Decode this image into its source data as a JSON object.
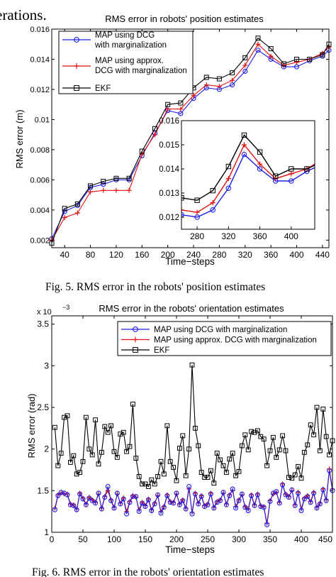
{
  "page": {
    "top_fragment": "erations.",
    "caption1": "Fig. 5.   RMS error in the robots' position estimates",
    "caption2": "Fig. 6.   RMS error in the robots' orientation estimates"
  },
  "colors": {
    "map_dcg": "#1f1fe6",
    "map_approx": "#e01010",
    "ekf": "#000000"
  },
  "chart_data": [
    {
      "type": "line",
      "title": "RMS error in robots' position estimates",
      "xlabel": "Time−steps",
      "ylabel": "RMS error (m)",
      "xlim": [
        20,
        450
      ],
      "ylim": [
        0.0015,
        0.016
      ],
      "xticks": [
        40,
        80,
        120,
        160,
        200,
        240,
        280,
        320,
        360,
        400,
        440
      ],
      "yticks": [
        0.002,
        0.004,
        0.006,
        0.008,
        0.01,
        0.012,
        0.014,
        0.016
      ],
      "ytick_labels": [
        "0.002",
        "0.004",
        "0.006",
        "0.008",
        "0.01",
        "0.012",
        "0.014",
        "0.016"
      ],
      "legend_position": "top-left",
      "x": [
        20,
        40,
        60,
        80,
        100,
        120,
        140,
        160,
        180,
        200,
        220,
        240,
        260,
        280,
        300,
        320,
        340,
        360,
        380,
        400,
        420,
        440,
        450
      ],
      "series": [
        {
          "name": "MAP using DCG\nwith marginalization",
          "marker": "circle",
          "color": "#1f1fe6",
          "values": [
            0.0021,
            0.0039,
            0.0043,
            0.0055,
            0.0057,
            0.006,
            0.006,
            0.0076,
            0.0091,
            0.0106,
            0.0104,
            0.0114,
            0.0121,
            0.012,
            0.0123,
            0.0132,
            0.0146,
            0.014,
            0.0135,
            0.0135,
            0.0139,
            0.0142,
            0.0146
          ]
        },
        {
          "name": "MAP using approx.\nDCG with marginalization",
          "marker": "plus",
          "color": "#e01010",
          "values": [
            0.002,
            0.0035,
            0.0038,
            0.0052,
            0.0053,
            0.0053,
            0.0053,
            0.0077,
            0.009,
            0.0107,
            0.0107,
            0.0116,
            0.0123,
            0.0122,
            0.0126,
            0.0136,
            0.015,
            0.0142,
            0.0136,
            0.0138,
            0.014,
            0.0144,
            0.0148
          ]
        },
        {
          "name": "EKF",
          "marker": "square",
          "color": "#000000",
          "values": [
            0.0018,
            0.0041,
            0.0044,
            0.0056,
            0.0059,
            0.0061,
            0.0061,
            0.0079,
            0.0094,
            0.011,
            0.0111,
            0.0121,
            0.0128,
            0.0127,
            0.0131,
            0.0141,
            0.0154,
            0.0147,
            0.0137,
            0.014,
            0.014,
            0.0143,
            0.015
          ]
        }
      ],
      "inset": {
        "xlim": [
          260,
          430
        ],
        "ylim": [
          0.0115,
          0.016
        ],
        "xticks": [
          280,
          320,
          360,
          400
        ],
        "yticks": [
          0.012,
          0.013,
          0.014,
          0.015,
          0.016
        ],
        "ytick_labels": [
          "0.012",
          "0.013",
          "0.014",
          "0.015",
          "0.016"
        ]
      }
    },
    {
      "type": "line",
      "title": "RMS error in the robots' orientation estimates",
      "xlabel": "Time−steps",
      "ylabel": "RMS error (rad)",
      "y_multiplier": "x 10",
      "y_multiplier_exp": "−3",
      "xlim": [
        0,
        450
      ],
      "ylim": [
        1,
        3.6
      ],
      "xticks": [
        0,
        50,
        100,
        150,
        200,
        250,
        300,
        350,
        400
      ],
      "xtick_labels": [
        "0",
        "50",
        "100",
        "150",
        "200",
        "250",
        "300",
        "350",
        "400"
      ],
      "xtick_end_label": "450",
      "yticks": [
        1,
        1.5,
        2,
        2.5,
        3,
        3.5
      ],
      "ytick_labels": [
        "1",
        "1.5",
        "2",
        "2.5",
        "3",
        "3.5"
      ],
      "legend_position": "top-right",
      "x_start": 5,
      "x_step": 5,
      "series": [
        {
          "name": "MAP using DCG with marginalization",
          "marker": "circle",
          "color": "#1f1fe6",
          "values": [
            1.27,
            1.44,
            1.48,
            1.47,
            1.45,
            1.33,
            1.32,
            1.27,
            1.46,
            1.4,
            1.33,
            1.41,
            1.38,
            1.35,
            1.47,
            1.28,
            1.42,
            1.55,
            1.38,
            1.29,
            1.47,
            1.34,
            1.4,
            1.22,
            1.36,
            1.43,
            1.43,
            1.25,
            1.35,
            1.31,
            1.39,
            1.26,
            1.34,
            1.45,
            1.23,
            1.3,
            1.44,
            1.36,
            1.35,
            1.47,
            1.33,
            1.38,
            1.28,
            1.55,
            1.22,
            1.46,
            1.34,
            1.43,
            1.31,
            1.33,
            1.46,
            1.29,
            1.36,
            1.38,
            1.48,
            1.33,
            1.44,
            1.52,
            1.29,
            1.38,
            1.46,
            1.3,
            1.26,
            1.44,
            1.32,
            1.45,
            1.31,
            1.3,
            1.09,
            1.37,
            1.47,
            1.49,
            1.35,
            1.57,
            1.45,
            1.42,
            1.51,
            1.32,
            1.47,
            1.26,
            1.4,
            1.43,
            1.36,
            1.47,
            1.29,
            1.34,
            1.51,
            1.38,
            1.74,
            1.5
          ]
        },
        {
          "name": "MAP using approx. DCG with marginalization",
          "marker": "plus",
          "color": "#e01010",
          "values": [
            1.29,
            1.45,
            1.47,
            1.46,
            1.46,
            1.34,
            1.33,
            1.28,
            1.47,
            1.41,
            1.34,
            1.42,
            1.39,
            1.36,
            1.46,
            1.29,
            1.43,
            1.5,
            1.39,
            1.3,
            1.46,
            1.35,
            1.41,
            1.25,
            1.37,
            1.44,
            1.42,
            1.27,
            1.36,
            1.32,
            1.4,
            1.27,
            1.35,
            1.44,
            1.25,
            1.31,
            1.45,
            1.37,
            1.36,
            1.46,
            1.34,
            1.39,
            1.29,
            1.52,
            1.24,
            1.47,
            1.35,
            1.44,
            1.32,
            1.34,
            1.47,
            1.3,
            1.37,
            1.39,
            1.47,
            1.34,
            1.45,
            1.5,
            1.31,
            1.39,
            1.45,
            1.31,
            1.28,
            1.45,
            1.33,
            1.46,
            1.32,
            1.31,
            1.11,
            1.38,
            1.46,
            1.48,
            1.36,
            1.58,
            1.46,
            1.43,
            1.5,
            1.33,
            1.48,
            1.28,
            1.41,
            1.44,
            1.37,
            1.48,
            1.3,
            1.35,
            1.52,
            1.39,
            1.76,
            1.52
          ]
        },
        {
          "name": "EKF",
          "marker": "square",
          "color": "#000000",
          "values": [
            2.26,
            1.8,
            1.95,
            2.38,
            2.4,
            1.84,
            1.92,
            1.7,
            1.72,
            1.85,
            2.38,
            2.0,
            1.93,
            2.35,
            1.82,
            1.96,
            2.27,
            2.2,
            2.28,
            1.97,
            1.9,
            2.18,
            2.2,
            1.97,
            2.03,
            2.54,
            1.89,
            1.67,
            1.58,
            1.58,
            1.55,
            1.63,
            1.58,
            1.67,
            1.85,
            1.7,
            2.28,
            1.85,
            1.78,
            1.62,
            2.01,
            2.16,
            1.68,
            2.0,
            3.01,
            2.25,
            2.04,
            1.72,
            1.66,
            1.66,
            1.74,
            1.59,
            1.95,
            1.87,
            1.8,
            1.72,
            1.88,
            1.95,
            1.68,
            1.73,
            2.04,
            2.17,
            1.99,
            2.21,
            2.2,
            2.22,
            2.15,
            2.12,
            1.8,
            1.98,
            2.14,
            1.9,
            1.99,
            2.16,
            1.98,
            1.66,
            1.65,
            1.69,
            1.79,
            1.65,
            1.96,
            2.05,
            2.29,
            2.17,
            2.5,
            1.98,
            2.48,
            2.15,
            1.93,
            2.1
          ]
        }
      ]
    }
  ]
}
